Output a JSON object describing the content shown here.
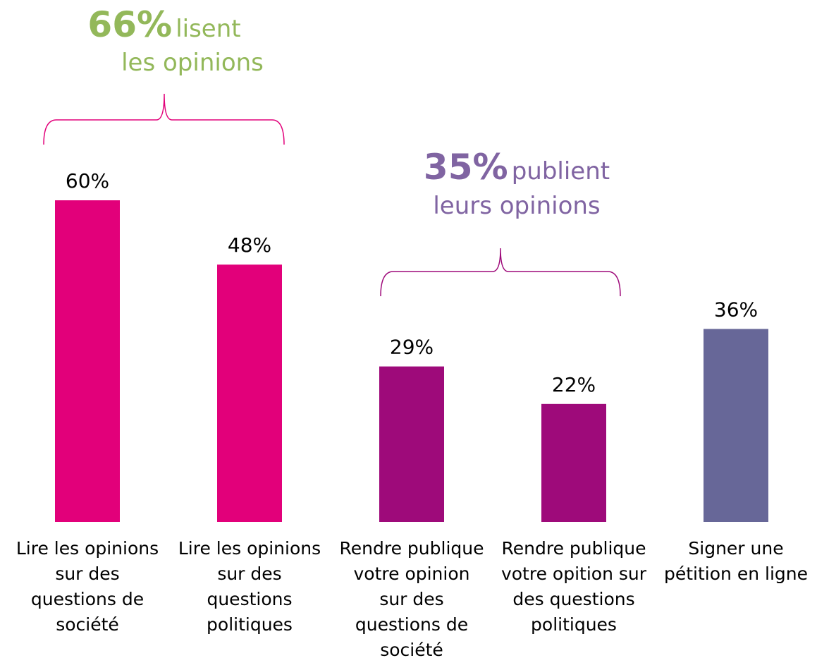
{
  "chart_data": {
    "type": "bar",
    "categories": [
      [
        "Lire les opinions",
        "sur des",
        "questions de",
        "société"
      ],
      [
        "Lire les opinions",
        "sur des",
        "questions",
        "politiques"
      ],
      [
        "Rendre publique",
        "votre opinion",
        "sur des",
        "questions de",
        "société"
      ],
      [
        "Rendre publique",
        "votre opition sur",
        "des questions",
        "politiques"
      ],
      [
        "Signer une",
        "pétition en ligne"
      ]
    ],
    "values": [
      60,
      48,
      29,
      22,
      36
    ],
    "value_labels": [
      "60%",
      "48%",
      "29%",
      "22%",
      "36%"
    ],
    "colors": [
      "#e2007a",
      "#e2007a",
      "#9e0a7a",
      "#9e0a7a",
      "#676798"
    ],
    "annotations": [
      {
        "figure": "66%",
        "text": "lisent",
        "text2": "les opinions",
        "color": "#93b85a"
      },
      {
        "figure": "35%",
        "text": "publient",
        "text2": "leurs opinions",
        "color": "#8064a2"
      }
    ]
  }
}
